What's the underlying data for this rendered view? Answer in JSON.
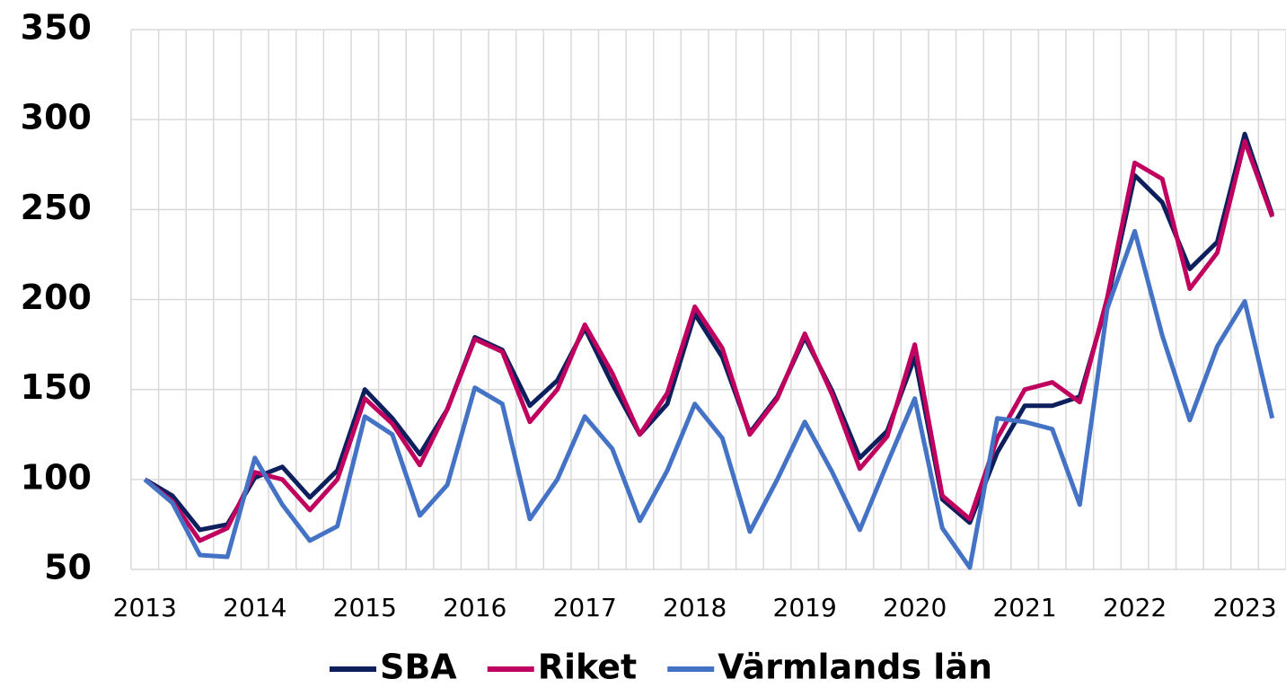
{
  "chart_data": {
    "type": "line",
    "categories": [
      "2013",
      null,
      null,
      null,
      "2014",
      null,
      null,
      null,
      "2015",
      null,
      null,
      null,
      "2016",
      null,
      null,
      null,
      "2017",
      null,
      null,
      null,
      "2018",
      null,
      null,
      null,
      "2019",
      null,
      null,
      null,
      "2020",
      null,
      null,
      null,
      "2021",
      null,
      null,
      null,
      "2022",
      null,
      null,
      null,
      "2023",
      null
    ],
    "series": [
      {
        "name": "SBA",
        "color": "#0d1f5c",
        "values": [
          100,
          91,
          72,
          75,
          101,
          107,
          90,
          105,
          150,
          134,
          114,
          139,
          179,
          172,
          141,
          155,
          184,
          153,
          125,
          142,
          192,
          168,
          126,
          146,
          179,
          149,
          112,
          127,
          168,
          89,
          76,
          115,
          141,
          141,
          146,
          199,
          269,
          254,
          217,
          232,
          292,
          247
        ]
      },
      {
        "name": "Riket",
        "color": "#c0005f",
        "values": [
          100,
          88,
          66,
          73,
          104,
          100,
          83,
          100,
          145,
          131,
          108,
          139,
          178,
          171,
          132,
          150,
          186,
          159,
          125,
          148,
          196,
          173,
          125,
          145,
          181,
          147,
          106,
          124,
          175,
          91,
          78,
          123,
          150,
          154,
          143,
          201,
          276,
          267,
          206,
          226,
          288,
          246
        ]
      },
      {
        "name": "Värmlands län",
        "color": "#4472c4",
        "values": [
          100,
          87,
          58,
          57,
          112,
          86,
          66,
          74,
          135,
          125,
          80,
          97,
          151,
          142,
          78,
          100,
          135,
          117,
          77,
          105,
          142,
          123,
          71,
          100,
          132,
          104,
          72,
          109,
          145,
          73,
          51,
          134,
          132,
          128,
          86,
          195,
          238,
          180,
          133,
          174,
          199,
          134
        ]
      }
    ],
    "ylim": [
      50,
      350
    ],
    "yticks": [
      50,
      100,
      150,
      200,
      250,
      300,
      350
    ],
    "grid": true
  }
}
